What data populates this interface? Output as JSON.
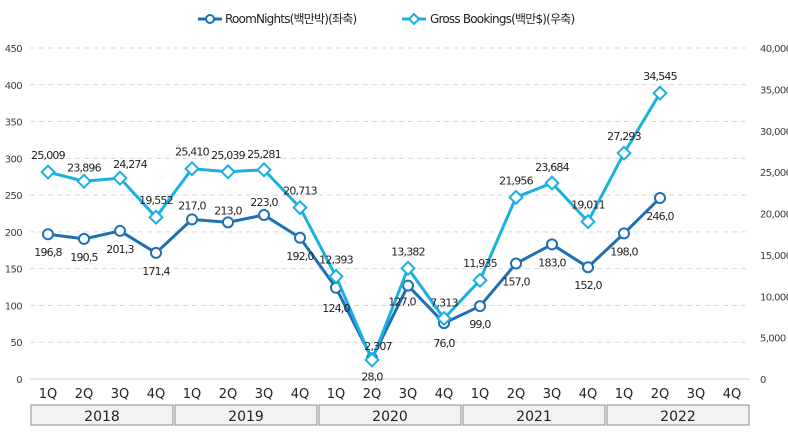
{
  "chart_data": {
    "type": "line",
    "title": "",
    "legend_position": "top-center",
    "categories": [
      "1Q",
      "2Q",
      "3Q",
      "4Q",
      "1Q",
      "2Q",
      "3Q",
      "4Q",
      "1Q",
      "2Q",
      "3Q",
      "4Q",
      "1Q",
      "2Q",
      "3Q",
      "4Q",
      "1Q",
      "2Q",
      "3Q",
      "4Q"
    ],
    "year_groups": [
      {
        "label": "2018",
        "span": 4
      },
      {
        "label": "2019",
        "span": 4
      },
      {
        "label": "2020",
        "span": 4
      },
      {
        "label": "2021",
        "span": 4
      },
      {
        "label": "2022",
        "span": 4
      }
    ],
    "left_axis": {
      "ylim": [
        0,
        450
      ],
      "ticks": [
        "0",
        "50",
        "100",
        "150",
        "200",
        "250",
        "300",
        "350",
        "400",
        "450"
      ]
    },
    "right_axis": {
      "ylim": [
        0,
        40000
      ],
      "ticks": [
        "0",
        "5,000",
        "10,000",
        "15,000",
        "20,000",
        "25,000",
        "30,000",
        "35,000",
        "40,000"
      ]
    },
    "grid": true,
    "series": [
      {
        "name": "RoomNights(백만박)(좌축)",
        "axis": "left",
        "color": "#1f6fb5",
        "marker": "circle",
        "values": [
          196.8,
          190.5,
          201.3,
          171.4,
          217.0,
          213.0,
          223.0,
          192.0,
          124.0,
          28.0,
          127.0,
          76.0,
          99.0,
          157.0,
          183.0,
          152.0,
          198.0,
          246.0,
          null,
          null
        ],
        "labels": [
          "196,8",
          "190,5",
          "201,3",
          "171,4",
          "217,0",
          "213,0",
          "223,0",
          "192,0",
          "124,0",
          "28,0",
          "127,0",
          "76,0",
          "99,0",
          "157,0",
          "183,0",
          "152,0",
          "198,0",
          "246,0",
          "",
          ""
        ]
      },
      {
        "name": "Gross Bookings(백만$)(우축)",
        "axis": "right",
        "color": "#1ab0e0",
        "marker": "diamond",
        "values": [
          25009,
          23896,
          24274,
          19552,
          25410,
          25039,
          25281,
          20713,
          12393,
          2307,
          13382,
          7313,
          11935,
          21956,
          23684,
          19011,
          27293,
          34545,
          null,
          null
        ],
        "labels": [
          "25,009",
          "23,896",
          "24,274",
          "19,552",
          "25,410",
          "25,039",
          "25,281",
          "20,713",
          "12,393",
          "2,307",
          "13,382",
          "7,313",
          "11,935",
          "21,956",
          "23,684",
          "19,011",
          "27,293",
          "34,545",
          "",
          ""
        ]
      }
    ]
  }
}
